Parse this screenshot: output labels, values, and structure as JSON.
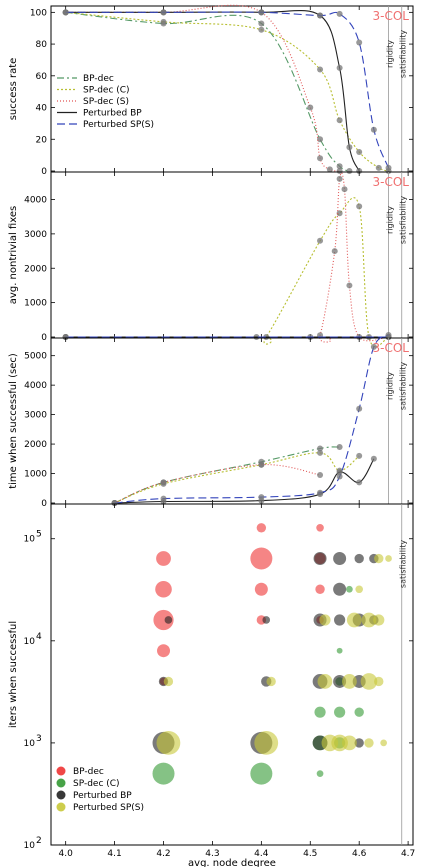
{
  "chart_data": [
    {
      "type": "line",
      "tag": "3-COL",
      "ylabel": "success rate",
      "ylim": [
        0,
        100
      ],
      "yticks": [
        0,
        20,
        40,
        60,
        80,
        100
      ],
      "xlim": [
        3.97,
        4.71
      ],
      "xticks": [
        4.0,
        4.1,
        4.2,
        4.3,
        4.4,
        4.5,
        4.6,
        4.7
      ],
      "vlines": [
        {
          "x": 4.66,
          "label": "rigidity"
        },
        {
          "x": 4.687,
          "label": "satisfiability"
        }
      ],
      "legend": "center-left",
      "series": [
        {
          "name": "BP-dec",
          "color": "#559966",
          "dash": "7,3,2,3",
          "x": [
            4.0,
            4.2,
            4.4,
            4.52,
            4.56,
            4.58
          ],
          "y": [
            100,
            93,
            93,
            20,
            3,
            0
          ]
        },
        {
          "name": "SP-dec (C)",
          "color": "#b8bf33",
          "dash": "2,2",
          "x": [
            4.0,
            4.2,
            4.4,
            4.52,
            4.56,
            4.6,
            4.64,
            4.66
          ],
          "y": [
            100,
            94,
            89,
            64,
            32,
            12,
            2,
            0
          ]
        },
        {
          "name": "SP-dec (S)",
          "color": "#e05555",
          "dash": "1,2",
          "x": [
            4.0,
            4.2,
            4.4,
            4.5,
            4.52,
            4.54,
            4.56
          ],
          "y": [
            100,
            100,
            100,
            40,
            8,
            1,
            0
          ]
        },
        {
          "name": "Perturbed BP",
          "color": "#222222",
          "dash": "",
          "x": [
            4.0,
            4.2,
            4.4,
            4.52,
            4.56,
            4.58,
            4.6
          ],
          "y": [
            100,
            100,
            100,
            98,
            65,
            15,
            0
          ]
        },
        {
          "name": "Perturbed SP(S)",
          "color": "#3344bb",
          "dash": "8,4",
          "x": [
            4.0,
            4.2,
            4.4,
            4.52,
            4.56,
            4.6,
            4.63,
            4.66
          ],
          "y": [
            100,
            100,
            100,
            98,
            99,
            81,
            26,
            2
          ]
        }
      ]
    },
    {
      "type": "line",
      "tag": "3-COL",
      "ylabel": "avg. nontrivial fixes",
      "ylim": [
        0,
        4800
      ],
      "yticks": [
        0,
        1000,
        2000,
        3000,
        4000
      ],
      "xlim": [
        3.97,
        4.71
      ],
      "xticks": [
        4.0,
        4.1,
        4.2,
        4.3,
        4.4,
        4.5,
        4.6,
        4.7
      ],
      "vlines": [
        {
          "x": 4.66,
          "label": "rigidity"
        },
        {
          "x": 4.687,
          "label": "satisfiability"
        }
      ],
      "series": [
        {
          "name": "SP-dec (C)",
          "color": "#b8bf33",
          "dash": "2,2",
          "x": [
            4.0,
            4.39,
            4.41,
            4.52,
            4.56,
            4.6,
            4.62,
            4.66
          ],
          "y": [
            0,
            0,
            0,
            2800,
            3600,
            3800,
            0,
            0
          ]
        },
        {
          "name": "SP-dec (S)",
          "color": "#e05555",
          "dash": "1,2",
          "x": [
            4.0,
            4.5,
            4.52,
            4.55,
            4.56,
            4.57,
            4.58,
            4.6,
            4.66
          ],
          "y": [
            0,
            0,
            50,
            2500,
            4600,
            4300,
            1500,
            0,
            0
          ]
        },
        {
          "name": "Perturbed BP",
          "color": "#222222",
          "dash": "",
          "x": [
            4.0,
            4.66
          ],
          "y": [
            0,
            0
          ]
        },
        {
          "name": "Perturbed SP(S)",
          "color": "#3344bb",
          "dash": "8,4",
          "x": [
            4.0,
            4.66
          ],
          "y": [
            0,
            0
          ]
        }
      ]
    },
    {
      "type": "line",
      "tag": "3-COL",
      "ylabel": "time when successful (sec)",
      "ylim": [
        0,
        5600
      ],
      "yticks": [
        0,
        1000,
        2000,
        3000,
        4000,
        5000
      ],
      "xlim": [
        3.97,
        4.71
      ],
      "xticks": [
        4.0,
        4.1,
        4.2,
        4.3,
        4.4,
        4.5,
        4.6,
        4.7
      ],
      "vlines": [
        {
          "x": 4.66,
          "label": "rigidity"
        },
        {
          "x": 4.687,
          "label": "satisfiability"
        }
      ],
      "series": [
        {
          "name": "BP-dec",
          "color": "#559966",
          "dash": "7,3,2,3",
          "x": [
            4.1,
            4.2,
            4.4,
            4.52,
            4.56
          ],
          "y": [
            0,
            700,
            1400,
            1850,
            1900
          ]
        },
        {
          "name": "SP-dec (C)",
          "color": "#b8bf33",
          "dash": "2,2",
          "x": [
            4.1,
            4.2,
            4.4,
            4.52,
            4.56,
            4.6
          ],
          "y": [
            0,
            650,
            1300,
            1700,
            1100,
            1600
          ]
        },
        {
          "name": "SP-dec (S)",
          "color": "#e05555",
          "dash": "1,2",
          "x": [
            4.1,
            4.2,
            4.4,
            4.52
          ],
          "y": [
            0,
            700,
            1300,
            950
          ]
        },
        {
          "name": "Perturbed BP",
          "color": "#222222",
          "dash": "",
          "x": [
            4.1,
            4.2,
            4.4,
            4.52,
            4.56,
            4.6,
            4.63
          ],
          "y": [
            0,
            50,
            80,
            300,
            1050,
            700,
            1500
          ]
        },
        {
          "name": "Perturbed SP(S)",
          "color": "#3344bb",
          "dash": "8,4",
          "x": [
            4.1,
            4.2,
            4.4,
            4.52,
            4.56,
            4.6,
            4.63,
            4.66
          ],
          "y": [
            0,
            150,
            200,
            350,
            900,
            3200,
            5300,
            5700
          ]
        }
      ]
    },
    {
      "type": "scatter",
      "xlabel": "avg. node degree",
      "ylabel": "iters when successful",
      "ylim": [
        100,
        200000
      ],
      "yscale": "log",
      "yticks": [
        {
          "v": 100,
          "e": "2"
        },
        {
          "v": 1000,
          "e": "3"
        },
        {
          "v": 10000,
          "e": "4"
        },
        {
          "v": 100000,
          "e": "5"
        }
      ],
      "xlim": [
        3.97,
        4.71
      ],
      "xticks": [
        4.0,
        4.1,
        4.2,
        4.3,
        4.4,
        4.5,
        4.6,
        4.7
      ],
      "vlines": [
        {
          "x": 4.687,
          "label": "satisfiability"
        }
      ],
      "legend": "bottom-left",
      "series": [
        {
          "name": "BP-dec",
          "color": "#ee3333",
          "points": [
            [
              4.2,
              64000,
              0.6
            ],
            [
              4.2,
              32000,
              0.7
            ],
            [
              4.2,
              16000,
              0.9
            ],
            [
              4.2,
              8000,
              0.5
            ],
            [
              4.2,
              4000,
              0.2
            ],
            [
              4.4,
              128000,
              0.3
            ],
            [
              4.4,
              64000,
              1.0
            ],
            [
              4.4,
              32000,
              0.5
            ],
            [
              4.4,
              16000,
              0.3
            ],
            [
              4.52,
              128000,
              0.2
            ],
            [
              4.52,
              64000,
              0.4
            ],
            [
              4.52,
              32000,
              0.3
            ],
            [
              4.52,
              16000,
              0.2
            ]
          ]
        },
        {
          "name": "SP-dec (C)",
          "color": "#339933",
          "points": [
            [
              4.2,
              500,
              1.0
            ],
            [
              4.4,
              500,
              1.0
            ],
            [
              4.52,
              2000,
              0.4
            ],
            [
              4.52,
              1000,
              0.6
            ],
            [
              4.52,
              500,
              0.15
            ],
            [
              4.56,
              4000,
              0.25
            ],
            [
              4.56,
              2000,
              0.4
            ],
            [
              4.56,
              1000,
              0.4
            ],
            [
              4.58,
              32000,
              0.15
            ],
            [
              4.6,
              2000,
              0.3
            ],
            [
              4.56,
              8000,
              0.1
            ]
          ]
        },
        {
          "name": "Perturbed BP",
          "color": "#222222",
          "points": [
            [
              4.2,
              1000,
              1.0
            ],
            [
              4.2,
              4000,
              0.3
            ],
            [
              4.21,
              16000,
              0.2
            ],
            [
              4.4,
              1000,
              1.0
            ],
            [
              4.41,
              4000,
              0.35
            ],
            [
              4.41,
              16000,
              0.2
            ],
            [
              4.52,
              64000,
              0.5
            ],
            [
              4.52,
              16000,
              0.5
            ],
            [
              4.52,
              4000,
              0.6
            ],
            [
              4.52,
              1000,
              0.6
            ],
            [
              4.56,
              64000,
              0.5
            ],
            [
              4.56,
              32000,
              0.5
            ],
            [
              4.56,
              16000,
              0.4
            ],
            [
              4.56,
              4000,
              0.5
            ],
            [
              4.6,
              64000,
              0.3
            ],
            [
              4.6,
              16000,
              0.5
            ],
            [
              4.6,
              4000,
              0.5
            ],
            [
              4.6,
              1000,
              0.3
            ],
            [
              4.63,
              64000,
              0.3
            ],
            [
              4.63,
              16000,
              0.3
            ]
          ]
        },
        {
          "name": "Perturbed SP(S)",
          "color": "#c8c838",
          "points": [
            [
              4.21,
              1000,
              1.1
            ],
            [
              4.21,
              4000,
              0.3
            ],
            [
              4.41,
              1000,
              1.1
            ],
            [
              4.42,
              4000,
              0.3
            ],
            [
              4.54,
              1000,
              0.7
            ],
            [
              4.53,
              4000,
              0.6
            ],
            [
              4.53,
              16000,
              0.4
            ],
            [
              4.56,
              1000,
              0.7
            ],
            [
              4.58,
              1000,
              0.6
            ],
            [
              4.58,
              4000,
              0.6
            ],
            [
              4.59,
              16000,
              0.6
            ],
            [
              4.62,
              16000,
              0.6
            ],
            [
              4.62,
              4000,
              0.7
            ],
            [
              4.62,
              1000,
              0.3
            ],
            [
              4.64,
              16000,
              0.4
            ],
            [
              4.64,
              4000,
              0.3
            ],
            [
              4.65,
              1000,
              0.15
            ],
            [
              4.64,
              64000,
              0.3
            ],
            [
              4.66,
              64000,
              0.15
            ],
            [
              4.6,
              32000,
              0.2
            ]
          ]
        }
      ]
    }
  ]
}
